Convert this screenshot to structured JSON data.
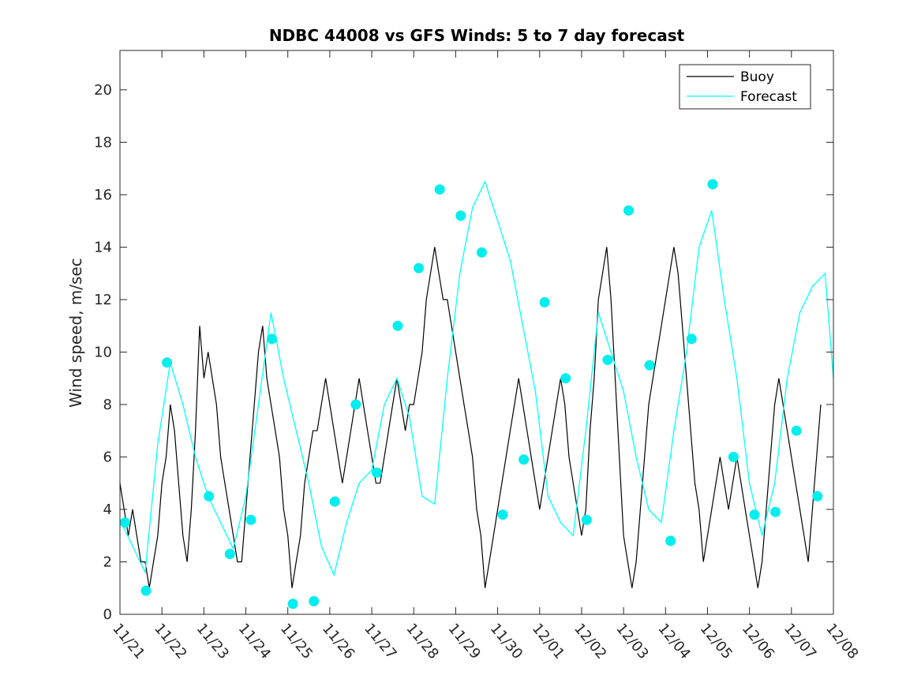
{
  "chart_data": {
    "type": "line",
    "title": "NDBC 44008 vs GFS Winds: 5 to 7 day forecast",
    "xlabel": "",
    "ylabel": "Wind speed, m/sec",
    "xlim": [
      0,
      17
    ],
    "ylim": [
      0,
      21.5
    ],
    "x_tick_labels": [
      "11/21",
      "11/22",
      "11/23",
      "11/24",
      "11/25",
      "11/26",
      "11/27",
      "11/28",
      "11/29",
      "11/30",
      "12/01",
      "12/02",
      "12/03",
      "12/04",
      "12/05",
      "12/06",
      "12/07",
      "12/08"
    ],
    "y_ticks": [
      0,
      2,
      4,
      6,
      8,
      10,
      12,
      14,
      16,
      18,
      20
    ],
    "legend": {
      "location": "top-right",
      "entries": [
        {
          "label": "Buoy",
          "color": "#000000"
        },
        {
          "label": "Forecast",
          "color": "#00ffff"
        }
      ]
    },
    "colors": {
      "buoy": "#000000",
      "forecast": "#00ffff",
      "marker": "#00eeee"
    },
    "series": [
      {
        "name": "Buoy",
        "x": [
          0.0,
          0.1,
          0.2,
          0.3,
          0.4,
          0.5,
          0.6,
          0.7,
          0.8,
          0.9,
          1.0,
          1.1,
          1.2,
          1.3,
          1.4,
          1.5,
          1.6,
          1.7,
          1.8,
          1.9,
          2.0,
          2.1,
          2.2,
          2.3,
          2.4,
          2.5,
          2.6,
          2.7,
          2.8,
          2.9,
          3.0,
          3.1,
          3.2,
          3.3,
          3.4,
          3.5,
          3.6,
          3.7,
          3.8,
          3.9,
          4.0,
          4.1,
          4.2,
          4.3,
          4.4,
          4.5,
          4.6,
          4.7,
          4.8,
          4.9,
          5.0,
          5.1,
          5.2,
          5.3,
          5.4,
          5.5,
          5.6,
          5.7,
          5.8,
          5.9,
          6.0,
          6.1,
          6.2,
          6.3,
          6.4,
          6.5,
          6.6,
          6.7,
          6.8,
          6.9,
          7.0,
          7.1,
          7.2,
          7.3,
          7.4,
          7.5,
          7.6,
          7.7,
          7.8,
          7.9,
          8.0,
          8.1,
          8.2,
          8.3,
          8.4,
          8.5,
          8.6,
          8.7,
          8.8,
          8.9,
          9.0,
          9.1,
          9.2,
          9.3,
          9.4,
          9.5,
          9.6,
          9.7,
          9.8,
          9.9,
          10.0,
          10.1,
          10.2,
          10.3,
          10.4,
          10.5,
          10.6,
          10.7,
          10.8,
          10.9,
          11.0,
          11.1,
          11.2,
          11.3,
          11.4,
          11.5,
          11.6,
          11.7,
          11.8,
          11.9,
          12.0,
          12.1,
          12.2,
          12.3,
          12.4,
          12.5,
          12.6,
          12.7,
          12.8,
          12.9,
          13.0,
          13.1,
          13.2,
          13.3,
          13.4,
          13.5,
          13.6,
          13.7,
          13.8,
          13.9,
          14.0,
          14.1,
          14.2,
          14.3,
          14.4,
          14.5,
          14.6,
          14.7,
          14.8,
          14.9,
          15.0,
          15.1,
          15.2,
          15.3,
          15.4,
          15.5,
          15.6,
          15.7,
          15.8,
          15.9,
          16.0,
          16.1,
          16.2,
          16.3,
          16.4,
          16.5,
          16.6,
          16.7
        ],
        "y": [
          5,
          4,
          3,
          4,
          3,
          2,
          2,
          1,
          2,
          3,
          5,
          6,
          8,
          7,
          5,
          3,
          2,
          4,
          7,
          11,
          9,
          10,
          9,
          8,
          6,
          5,
          4,
          3,
          2,
          2,
          4,
          6,
          8,
          10,
          11,
          9,
          8,
          7,
          6,
          4,
          3,
          1,
          2,
          3,
          5,
          6,
          7,
          7,
          8,
          9,
          8,
          7,
          6,
          5,
          6,
          7,
          8,
          9,
          8,
          7,
          6,
          5,
          5,
          6,
          7,
          8,
          9,
          8,
          7,
          8,
          8,
          9,
          10,
          12,
          13,
          14,
          13,
          12,
          12,
          11,
          10,
          9,
          8,
          7,
          6,
          4,
          3,
          1,
          2,
          3,
          4,
          5,
          6,
          7,
          8,
          9,
          8,
          7,
          6,
          5,
          4,
          5,
          6,
          7,
          8,
          9,
          8,
          6,
          5,
          4,
          3,
          4,
          7,
          9,
          12,
          13,
          14,
          12,
          9,
          6,
          3,
          2,
          1,
          2,
          4,
          6,
          8,
          9,
          10,
          11,
          12,
          13,
          14,
          13,
          11,
          9,
          7,
          5,
          4,
          2,
          3,
          4,
          5,
          6,
          5,
          4,
          5,
          6,
          5,
          4,
          3,
          2,
          1,
          2,
          4,
          6,
          8,
          9,
          8,
          7,
          6,
          5,
          4,
          3,
          2,
          4,
          6,
          8
        ]
      },
      {
        "name": "Forecast",
        "x": [
          0.0,
          0.3,
          0.6,
          0.9,
          1.2,
          1.5,
          1.8,
          2.1,
          2.4,
          2.7,
          3.0,
          3.3,
          3.6,
          3.9,
          4.2,
          4.5,
          4.8,
          5.1,
          5.4,
          5.7,
          6.0,
          6.3,
          6.6,
          6.9,
          7.2,
          7.5,
          7.8,
          8.1,
          8.4,
          8.7,
          9.0,
          9.3,
          9.6,
          9.9,
          10.2,
          10.5,
          10.8,
          11.1,
          11.4,
          11.7,
          12.0,
          12.3,
          12.6,
          12.9,
          13.2,
          13.5,
          13.8,
          14.1,
          14.4,
          14.7,
          15.0,
          15.3,
          15.6,
          15.9,
          16.2,
          16.5,
          16.8,
          17.0
        ],
        "y": [
          3.6,
          2.6,
          1.6,
          6.5,
          9.6,
          8.0,
          6.0,
          4.5,
          3.5,
          2.5,
          4.5,
          8.0,
          11.5,
          9.0,
          7.0,
          5.0,
          2.6,
          1.5,
          3.5,
          5.0,
          5.5,
          8.0,
          9.0,
          7.5,
          4.5,
          4.2,
          9.0,
          13.0,
          15.5,
          16.5,
          15.0,
          13.5,
          11.0,
          8.5,
          4.5,
          3.5,
          3.0,
          7.0,
          11.5,
          10.0,
          8.5,
          6.0,
          4.0,
          3.5,
          7.0,
          10.0,
          14.0,
          15.4,
          12.0,
          9.0,
          5.0,
          3.0,
          5.0,
          9.0,
          11.5,
          12.5,
          13.0,
          9.0
        ]
      }
    ],
    "markers": {
      "name": "Forecast markers",
      "x": [
        0.12,
        0.62,
        1.12,
        2.12,
        2.62,
        3.12,
        3.62,
        4.12,
        4.62,
        5.12,
        5.62,
        6.12,
        6.62,
        7.12,
        7.62,
        8.12,
        8.62,
        9.12,
        9.62,
        10.12,
        10.62,
        11.12,
        11.62,
        12.12,
        12.62,
        13.12,
        13.62,
        14.12,
        14.62,
        15.12,
        15.62,
        16.12,
        16.62
      ],
      "y": [
        3.5,
        0.9,
        9.6,
        4.5,
        2.3,
        3.6,
        10.5,
        0.4,
        0.5,
        4.3,
        8.0,
        5.4,
        11.0,
        13.2,
        16.2,
        15.2,
        13.8,
        3.8,
        5.9,
        11.9,
        9.0,
        3.6,
        9.7,
        15.4,
        9.5,
        2.8,
        10.5,
        16.4,
        6.0,
        3.8,
        3.9,
        7.0,
        4.5
      ]
    }
  }
}
